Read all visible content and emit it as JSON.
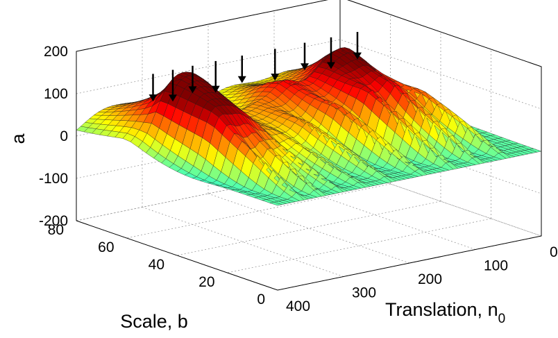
{
  "chart_data": {
    "type": "surface",
    "zlabel": "a",
    "xlabel": "Translation, n",
    "xlabel_sub": "0",
    "ylabel": "Scale, b",
    "z_ticks": [
      "200",
      "100",
      "0",
      "-100",
      "-200"
    ],
    "x_ticks": [
      "0",
      "100",
      "200",
      "300",
      "400"
    ],
    "y_ticks": [
      "0",
      "20",
      "40",
      "60",
      "80"
    ],
    "zlim": [
      -200,
      200
    ],
    "xlim": [
      0,
      400
    ],
    "ylim": [
      0,
      80
    ],
    "grid": true,
    "colormap": "jet",
    "arrow_markers": [
      {
        "translation": 50
      },
      {
        "translation": 90
      },
      {
        "translation": 130
      },
      {
        "translation": 175
      },
      {
        "translation": 225
      },
      {
        "translation": 265
      },
      {
        "translation": 300
      },
      {
        "translation": 330
      },
      {
        "translation": 360
      }
    ]
  }
}
